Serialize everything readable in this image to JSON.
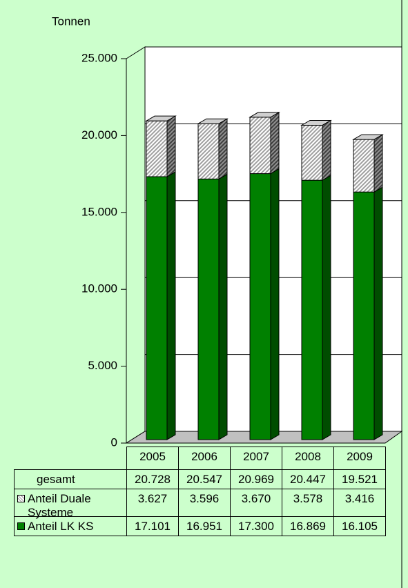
{
  "chart_data": {
    "type": "bar",
    "stacked": true,
    "three_d": true,
    "y_label": "Tonnen",
    "categories": [
      "2005",
      "2006",
      "2007",
      "2008",
      "2009"
    ],
    "ylim": [
      0,
      25000
    ],
    "yticks": [
      0,
      {
        "value": 5000,
        "label": "5.000"
      },
      {
        "value": 10000,
        "label": "10.000"
      },
      {
        "value": 15000,
        "label": "15.000"
      },
      {
        "value": 20000,
        "label": "20.000"
      },
      {
        "value": 25000,
        "label": "25.000"
      }
    ],
    "grid": true,
    "series": [
      {
        "name": "Anteil LK KS",
        "color": "#008000",
        "pattern": "solid",
        "values": [
          17101,
          16951,
          17300,
          16869,
          16105
        ],
        "value_labels": [
          "17.101",
          "16.951",
          "17.300",
          "16.869",
          "16.105"
        ]
      },
      {
        "name": "Anteil Duale Systeme",
        "color": "#a0a0a0",
        "pattern": "hatch",
        "values": [
          3627,
          3596,
          3670,
          3578,
          3416
        ],
        "value_labels": [
          "3.627",
          "3.596",
          "3.670",
          "3.578",
          "3.416"
        ]
      }
    ],
    "total": {
      "name": "gesamt",
      "values": [
        20728,
        20547,
        20969,
        20447,
        19521
      ],
      "value_labels": [
        "20.728",
        "20.547",
        "20.969",
        "20.447",
        "19.521"
      ]
    }
  }
}
